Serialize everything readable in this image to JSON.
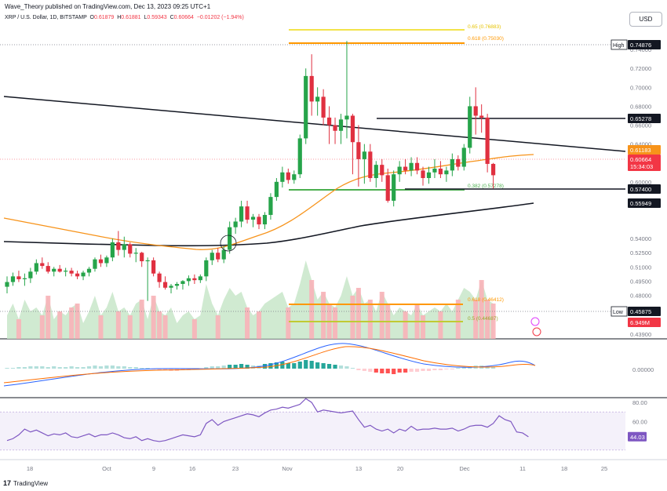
{
  "header": {
    "published": "Wave_Theory published on TradingView.com, Dec 13, 2023 09:25 UTC+1",
    "symbol": "XRP / U.S. Dollar, 1D, BITSTAMP",
    "o_label": "O",
    "o_value": "0.61879",
    "h_label": "H",
    "h_value": "0.61881",
    "l_label": "L",
    "l_value": "0.59343",
    "c_label": "C",
    "c_value": "0.60664",
    "change": "−0.01202 (−1.94%)",
    "currency_button": "USD"
  },
  "footer": {
    "brand": "TradingView",
    "logo_mark": "17"
  },
  "colors": {
    "up": "#089981",
    "up_body": "#26a44a",
    "down": "#e03040",
    "ema50": "#f7931a",
    "ema200": "#131722",
    "trend": "#131722",
    "fib": "#f2b705",
    "green_line": "#4caf50",
    "macd": "#2962ff",
    "signal": "#ff6d00",
    "rsi": "#7e57c2"
  },
  "chart_data": [
    {
      "type": "candlestick",
      "title": "XRP / U.S. Dollar, 1D, BITSTAMP",
      "ylim": [
        0.4339,
        0.7675
      ],
      "x_ticks": [
        "18",
        "Oct",
        "9",
        "16",
        "23",
        "Nov",
        "13",
        "20",
        "Dec",
        "11",
        "18",
        "25"
      ],
      "y_ticks": [
        "0.74000",
        "0.72000",
        "0.70000",
        "0.68000",
        "0.66000",
        "0.64000",
        "0.62000",
        "0.60000",
        "0.58000",
        "0.54000",
        "0.52500",
        "0.51000",
        "0.49500",
        "0.48000",
        "0.46600",
        "0.43900"
      ],
      "candles": [
        {
          "o": 0.489,
          "h": 0.5,
          "l": 0.482,
          "c": 0.494
        },
        {
          "o": 0.494,
          "h": 0.504,
          "l": 0.49,
          "c": 0.5
        },
        {
          "o": 0.5,
          "h": 0.506,
          "l": 0.494,
          "c": 0.497
        },
        {
          "o": 0.497,
          "h": 0.503,
          "l": 0.49,
          "c": 0.498
        },
        {
          "o": 0.498,
          "h": 0.509,
          "l": 0.493,
          "c": 0.505
        },
        {
          "o": 0.505,
          "h": 0.518,
          "l": 0.502,
          "c": 0.514
        },
        {
          "o": 0.514,
          "h": 0.52,
          "l": 0.508,
          "c": 0.511
        },
        {
          "o": 0.511,
          "h": 0.515,
          "l": 0.503,
          "c": 0.505
        },
        {
          "o": 0.505,
          "h": 0.51,
          "l": 0.5,
          "c": 0.508
        },
        {
          "o": 0.508,
          "h": 0.512,
          "l": 0.504,
          "c": 0.505
        },
        {
          "o": 0.505,
          "h": 0.509,
          "l": 0.5,
          "c": 0.506
        },
        {
          "o": 0.506,
          "h": 0.509,
          "l": 0.5,
          "c": 0.503
        },
        {
          "o": 0.503,
          "h": 0.506,
          "l": 0.497,
          "c": 0.5
        },
        {
          "o": 0.5,
          "h": 0.506,
          "l": 0.496,
          "c": 0.504
        },
        {
          "o": 0.504,
          "h": 0.51,
          "l": 0.5,
          "c": 0.508
        },
        {
          "o": 0.508,
          "h": 0.52,
          "l": 0.505,
          "c": 0.518
        },
        {
          "o": 0.518,
          "h": 0.523,
          "l": 0.51,
          "c": 0.514
        },
        {
          "o": 0.514,
          "h": 0.522,
          "l": 0.51,
          "c": 0.52
        },
        {
          "o": 0.52,
          "h": 0.54,
          "l": 0.516,
          "c": 0.536
        },
        {
          "o": 0.536,
          "h": 0.548,
          "l": 0.522,
          "c": 0.528
        },
        {
          "o": 0.528,
          "h": 0.542,
          "l": 0.52,
          "c": 0.534
        },
        {
          "o": 0.534,
          "h": 0.536,
          "l": 0.52,
          "c": 0.524
        },
        {
          "o": 0.524,
          "h": 0.53,
          "l": 0.515,
          "c": 0.525
        },
        {
          "o": 0.525,
          "h": 0.526,
          "l": 0.51,
          "c": 0.516
        },
        {
          "o": 0.516,
          "h": 0.52,
          "l": 0.474,
          "c": 0.517
        },
        {
          "o": 0.517,
          "h": 0.52,
          "l": 0.5,
          "c": 0.503
        },
        {
          "o": 0.503,
          "h": 0.505,
          "l": 0.488,
          "c": 0.494
        },
        {
          "o": 0.494,
          "h": 0.5,
          "l": 0.486,
          "c": 0.488
        },
        {
          "o": 0.488,
          "h": 0.492,
          "l": 0.482,
          "c": 0.49
        },
        {
          "o": 0.49,
          "h": 0.494,
          "l": 0.486,
          "c": 0.492
        },
        {
          "o": 0.492,
          "h": 0.496,
          "l": 0.486,
          "c": 0.495
        },
        {
          "o": 0.495,
          "h": 0.501,
          "l": 0.49,
          "c": 0.498
        },
        {
          "o": 0.498,
          "h": 0.502,
          "l": 0.492,
          "c": 0.496
        },
        {
          "o": 0.496,
          "h": 0.502,
          "l": 0.493,
          "c": 0.5
        },
        {
          "o": 0.5,
          "h": 0.52,
          "l": 0.495,
          "c": 0.517
        },
        {
          "o": 0.517,
          "h": 0.528,
          "l": 0.512,
          "c": 0.525
        },
        {
          "o": 0.525,
          "h": 0.53,
          "l": 0.515,
          "c": 0.518
        },
        {
          "o": 0.518,
          "h": 0.532,
          "l": 0.514,
          "c": 0.528
        },
        {
          "o": 0.528,
          "h": 0.558,
          "l": 0.524,
          "c": 0.552
        },
        {
          "o": 0.552,
          "h": 0.562,
          "l": 0.545,
          "c": 0.558
        },
        {
          "o": 0.558,
          "h": 0.58,
          "l": 0.552,
          "c": 0.574
        },
        {
          "o": 0.574,
          "h": 0.58,
          "l": 0.556,
          "c": 0.56
        },
        {
          "o": 0.56,
          "h": 0.566,
          "l": 0.552,
          "c": 0.563
        },
        {
          "o": 0.563,
          "h": 0.566,
          "l": 0.55,
          "c": 0.555
        },
        {
          "o": 0.555,
          "h": 0.568,
          "l": 0.55,
          "c": 0.565
        },
        {
          "o": 0.565,
          "h": 0.588,
          "l": 0.56,
          "c": 0.584
        },
        {
          "o": 0.584,
          "h": 0.604,
          "l": 0.58,
          "c": 0.6
        },
        {
          "o": 0.6,
          "h": 0.616,
          "l": 0.594,
          "c": 0.61
        },
        {
          "o": 0.61,
          "h": 0.614,
          "l": 0.598,
          "c": 0.602
        },
        {
          "o": 0.602,
          "h": 0.612,
          "l": 0.598,
          "c": 0.608
        },
        {
          "o": 0.608,
          "h": 0.65,
          "l": 0.604,
          "c": 0.646
        },
        {
          "o": 0.646,
          "h": 0.72,
          "l": 0.64,
          "c": 0.712
        },
        {
          "o": 0.712,
          "h": 0.735,
          "l": 0.67,
          "c": 0.685
        },
        {
          "o": 0.685,
          "h": 0.7,
          "l": 0.67,
          "c": 0.69
        },
        {
          "o": 0.69,
          "h": 0.698,
          "l": 0.66,
          "c": 0.668
        },
        {
          "o": 0.668,
          "h": 0.68,
          "l": 0.64,
          "c": 0.66
        },
        {
          "o": 0.66,
          "h": 0.668,
          "l": 0.64,
          "c": 0.654
        },
        {
          "o": 0.654,
          "h": 0.672,
          "l": 0.64,
          "c": 0.666
        },
        {
          "o": 0.666,
          "h": 0.749,
          "l": 0.646,
          "c": 0.67
        },
        {
          "o": 0.67,
          "h": 0.672,
          "l": 0.608,
          "c": 0.642
        },
        {
          "o": 0.642,
          "h": 0.66,
          "l": 0.595,
          "c": 0.624
        },
        {
          "o": 0.624,
          "h": 0.64,
          "l": 0.598,
          "c": 0.632
        },
        {
          "o": 0.632,
          "h": 0.64,
          "l": 0.6,
          "c": 0.604
        },
        {
          "o": 0.604,
          "h": 0.622,
          "l": 0.594,
          "c": 0.618
        },
        {
          "o": 0.618,
          "h": 0.624,
          "l": 0.6,
          "c": 0.607
        },
        {
          "o": 0.607,
          "h": 0.614,
          "l": 0.578,
          "c": 0.58
        },
        {
          "o": 0.58,
          "h": 0.612,
          "l": 0.574,
          "c": 0.608
        },
        {
          "o": 0.608,
          "h": 0.622,
          "l": 0.6,
          "c": 0.616
        },
        {
          "o": 0.616,
          "h": 0.624,
          "l": 0.608,
          "c": 0.612
        },
        {
          "o": 0.612,
          "h": 0.626,
          "l": 0.606,
          "c": 0.62
        },
        {
          "o": 0.62,
          "h": 0.626,
          "l": 0.608,
          "c": 0.612
        },
        {
          "o": 0.612,
          "h": 0.616,
          "l": 0.596,
          "c": 0.604
        },
        {
          "o": 0.604,
          "h": 0.616,
          "l": 0.598,
          "c": 0.61
        },
        {
          "o": 0.61,
          "h": 0.624,
          "l": 0.604,
          "c": 0.614
        },
        {
          "o": 0.614,
          "h": 0.622,
          "l": 0.604,
          "c": 0.608
        },
        {
          "o": 0.608,
          "h": 0.616,
          "l": 0.6,
          "c": 0.612
        },
        {
          "o": 0.612,
          "h": 0.63,
          "l": 0.606,
          "c": 0.624
        },
        {
          "o": 0.624,
          "h": 0.628,
          "l": 0.612,
          "c": 0.616
        },
        {
          "o": 0.616,
          "h": 0.64,
          "l": 0.612,
          "c": 0.636
        },
        {
          "o": 0.636,
          "h": 0.69,
          "l": 0.63,
          "c": 0.68
        },
        {
          "o": 0.68,
          "h": 0.7,
          "l": 0.65,
          "c": 0.67
        },
        {
          "o": 0.67,
          "h": 0.682,
          "l": 0.652,
          "c": 0.668
        },
        {
          "o": 0.668,
          "h": 0.672,
          "l": 0.61,
          "c": 0.619
        },
        {
          "o": 0.619,
          "h": 0.62,
          "l": 0.593,
          "c": 0.607
        }
      ],
      "annotations": [
        "0.65 (0.76883)",
        "0.618 (0.75030)",
        "0.382 (0.57278)",
        "0.618 (0.46412)",
        "0.5 (0.44687)"
      ],
      "price_labels": [
        {
          "text": "High",
          "value": "0.74876",
          "style": "dark"
        },
        {
          "text": "",
          "value": "0.65278",
          "style": "dark"
        },
        {
          "text": "",
          "value": "0.61183",
          "style": "orange"
        },
        {
          "text": "",
          "value": "0.60664",
          "style": "red"
        },
        {
          "text": "",
          "value": "15:34:03",
          "style": "red-sub"
        },
        {
          "text": "",
          "value": "0.57400",
          "style": "dark"
        },
        {
          "text": "",
          "value": "0.55949",
          "style": "dark"
        },
        {
          "text": "Low",
          "value": "0.45875",
          "style": "dark"
        },
        {
          "text": "",
          "value": "6.949M",
          "style": "red"
        }
      ]
    },
    {
      "type": "bar",
      "title": "",
      "y_ticks": [
        "0.00000"
      ]
    },
    {
      "type": "line",
      "title": "",
      "ylim": [
        20,
        85
      ],
      "y_ticks": [
        "80.00",
        "60.00"
      ],
      "last_value": "44.03",
      "values": [
        40,
        42,
        46,
        52,
        49,
        51,
        48,
        45,
        47,
        46,
        48,
        44,
        43,
        45,
        47,
        44,
        46,
        46,
        48,
        46,
        43,
        42,
        44,
        40,
        42,
        40,
        39,
        40,
        42,
        44,
        46,
        45,
        44,
        46,
        58,
        62,
        56,
        60,
        62,
        64,
        66,
        68,
        67,
        65,
        69,
        72,
        73,
        75,
        74,
        76,
        78,
        84,
        80,
        70,
        72,
        71,
        70,
        69,
        70,
        71,
        62,
        54,
        56,
        52,
        50,
        52,
        48,
        52,
        50,
        55,
        51,
        52,
        52,
        53,
        52,
        52,
        53,
        50,
        52,
        55,
        56,
        56,
        54,
        58,
        66,
        62,
        60,
        49,
        48,
        44
      ]
    }
  ]
}
